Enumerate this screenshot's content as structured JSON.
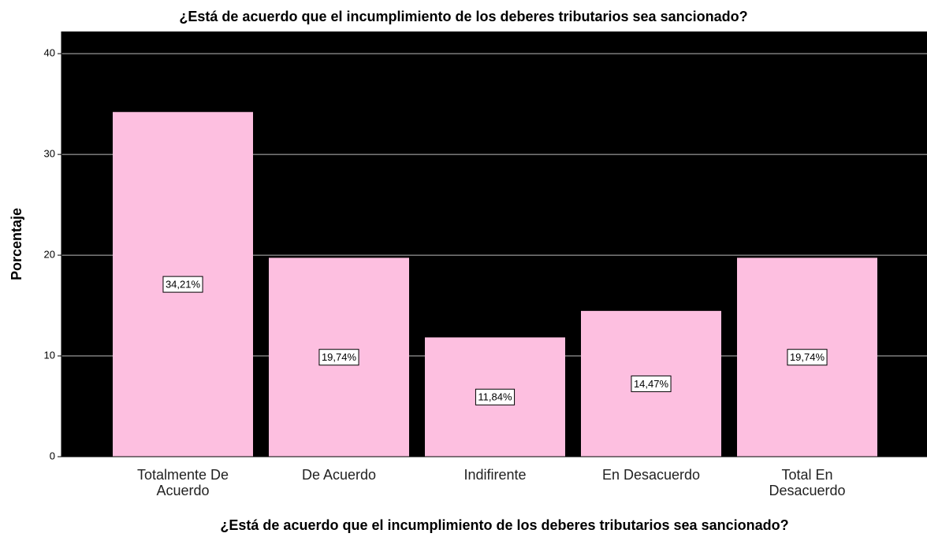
{
  "chart_data": {
    "type": "bar",
    "title": "¿Está de acuerdo que el incumplimiento de los deberes tributarios sea sancionado?",
    "x_label": "¿Está de acuerdo que el incumplimiento de los deberes tributarios sea sancionado?",
    "y_label": "Porcentaje",
    "categories": [
      "Totalmente De Acuerdo",
      "De Acuerdo",
      "Indifirente",
      "En Desacuerdo",
      "Total En Desacuerdo"
    ],
    "values": [
      34.21,
      19.74,
      11.84,
      14.47,
      19.74
    ],
    "value_labels": [
      "34,21%",
      "19,74%",
      "11,84%",
      "14,47%",
      "19,74%"
    ],
    "color": "#fdbfe0",
    "ylim": [
      0,
      42.2
    ],
    "yticks": [
      0,
      10,
      20,
      30,
      40
    ],
    "grid": true
  }
}
